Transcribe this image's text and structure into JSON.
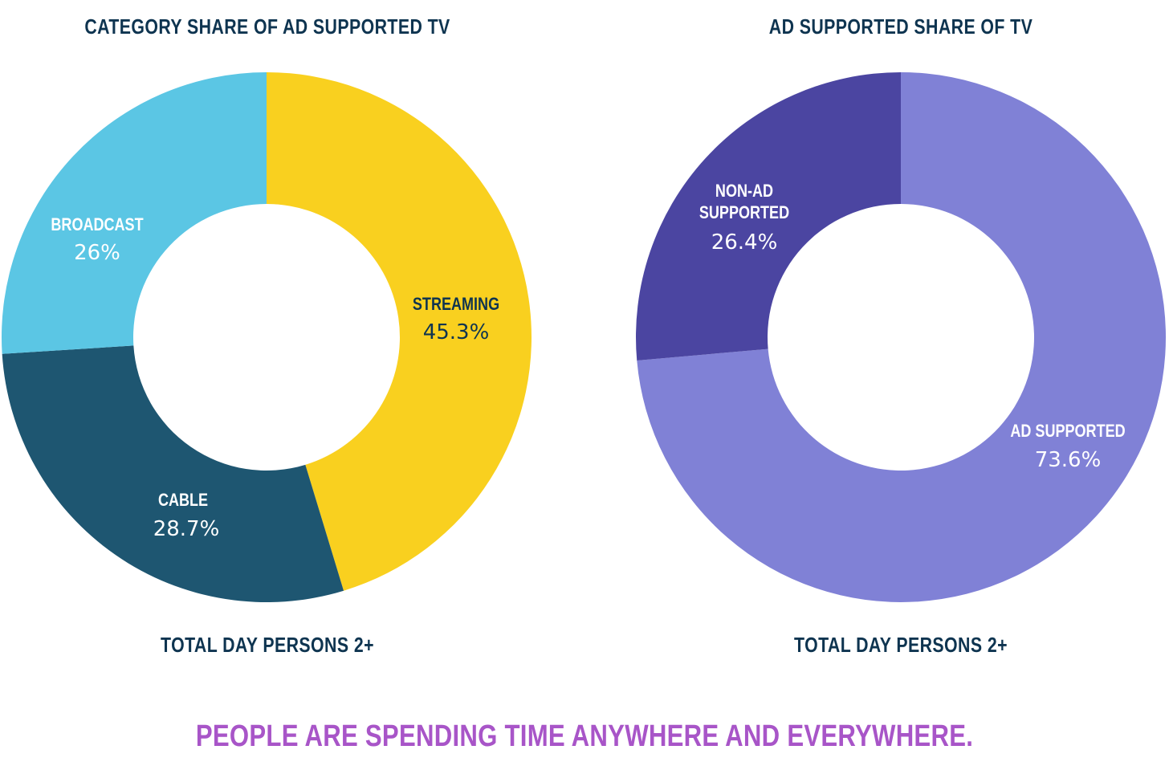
{
  "colors": {
    "title": "#0e3450",
    "footer": "#a855c8"
  },
  "footer_text": "PEOPLE ARE SPENDING TIME ANYWHERE AND EVERYWHERE.",
  "chart_data": [
    {
      "type": "pie",
      "variant": "donut",
      "title": "CATEGORY SHARE OF AD SUPPORTED TV",
      "subtitle": "TOTAL DAY PERSONS 2+",
      "start": "12 o'clock, clockwise",
      "slices": [
        {
          "label": "STREAMING",
          "value": 45.3,
          "value_label": "45.3%",
          "color": "#f9d01f",
          "text_color": "#0e3450"
        },
        {
          "label": "CABLE",
          "value": 28.7,
          "value_label": "28.7%",
          "color": "#1e5671",
          "text_color": "#ffffff"
        },
        {
          "label": "BROADCAST",
          "value": 26,
          "value_label": "26%",
          "color": "#5bc6e4",
          "text_color": "#ffffff"
        }
      ]
    },
    {
      "type": "pie",
      "variant": "donut",
      "title": "AD SUPPORTED SHARE OF TV",
      "subtitle": "TOTAL DAY PERSONS 2+",
      "start": "12 o'clock, clockwise",
      "slices": [
        {
          "label": "AD SUPPORTED",
          "value": 73.6,
          "value_label": "73.6%",
          "color": "#8081d6",
          "text_color": "#ffffff"
        },
        {
          "label": "NON-AD SUPPORTED",
          "value": 26.4,
          "value_label": "26.4%",
          "color": "#4b45a1",
          "text_color": "#ffffff"
        }
      ]
    }
  ]
}
